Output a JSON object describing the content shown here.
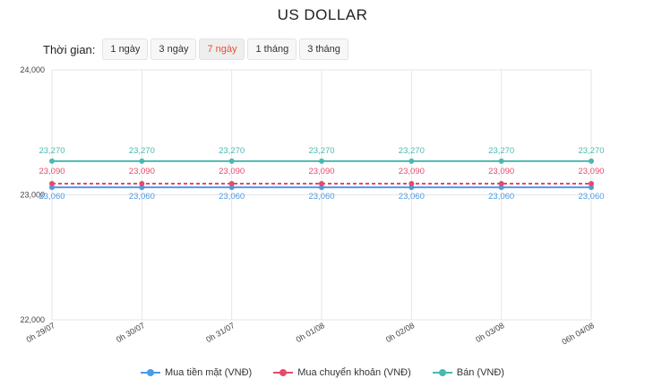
{
  "header": {
    "title": "US DOLLAR"
  },
  "period": {
    "label": "Thời gian:",
    "options": [
      "1 ngày",
      "3 ngày",
      "7 ngày",
      "1 tháng",
      "3 tháng"
    ],
    "selected": "7 ngày"
  },
  "chart_data": {
    "type": "line",
    "title": "US DOLLAR",
    "categories": [
      "0h 29/07",
      "0h 30/07",
      "0h 31/07",
      "0h 01/08",
      "0h 02/08",
      "0h 03/08",
      "06h 04/08"
    ],
    "y_ticks": [
      "24,000",
      "23,000",
      "22,000"
    ],
    "ylim": [
      22000,
      24000
    ],
    "grid": true,
    "legend_position": "bottom",
    "series": [
      {
        "name": "Mua tiền mặt (VNĐ)",
        "color": "#4b9be8",
        "dashed": false,
        "values": [
          23060,
          23060,
          23060,
          23060,
          23060,
          23060,
          23060
        ],
        "labels": [
          "23,060",
          "23,060",
          "23,060",
          "23,060",
          "23,060",
          "23,060",
          "23,060"
        ]
      },
      {
        "name": "Mua chuyển khoản (VNĐ)",
        "color": "#e84a6a",
        "dashed": true,
        "values": [
          23090,
          23090,
          23090,
          23090,
          23090,
          23090,
          23090
        ],
        "labels": [
          "23,090",
          "23,090",
          "23,090",
          "23,090",
          "23,090",
          "23,090",
          "23,090"
        ]
      },
      {
        "name": "Bán (VNĐ)",
        "color": "#4bb8b2",
        "dashed": false,
        "values": [
          23270,
          23270,
          23270,
          23270,
          23270,
          23270,
          23270
        ],
        "labels": [
          "23,270",
          "23,270",
          "23,270",
          "23,270",
          "23,270",
          "23,270",
          "23,270"
        ]
      }
    ]
  }
}
